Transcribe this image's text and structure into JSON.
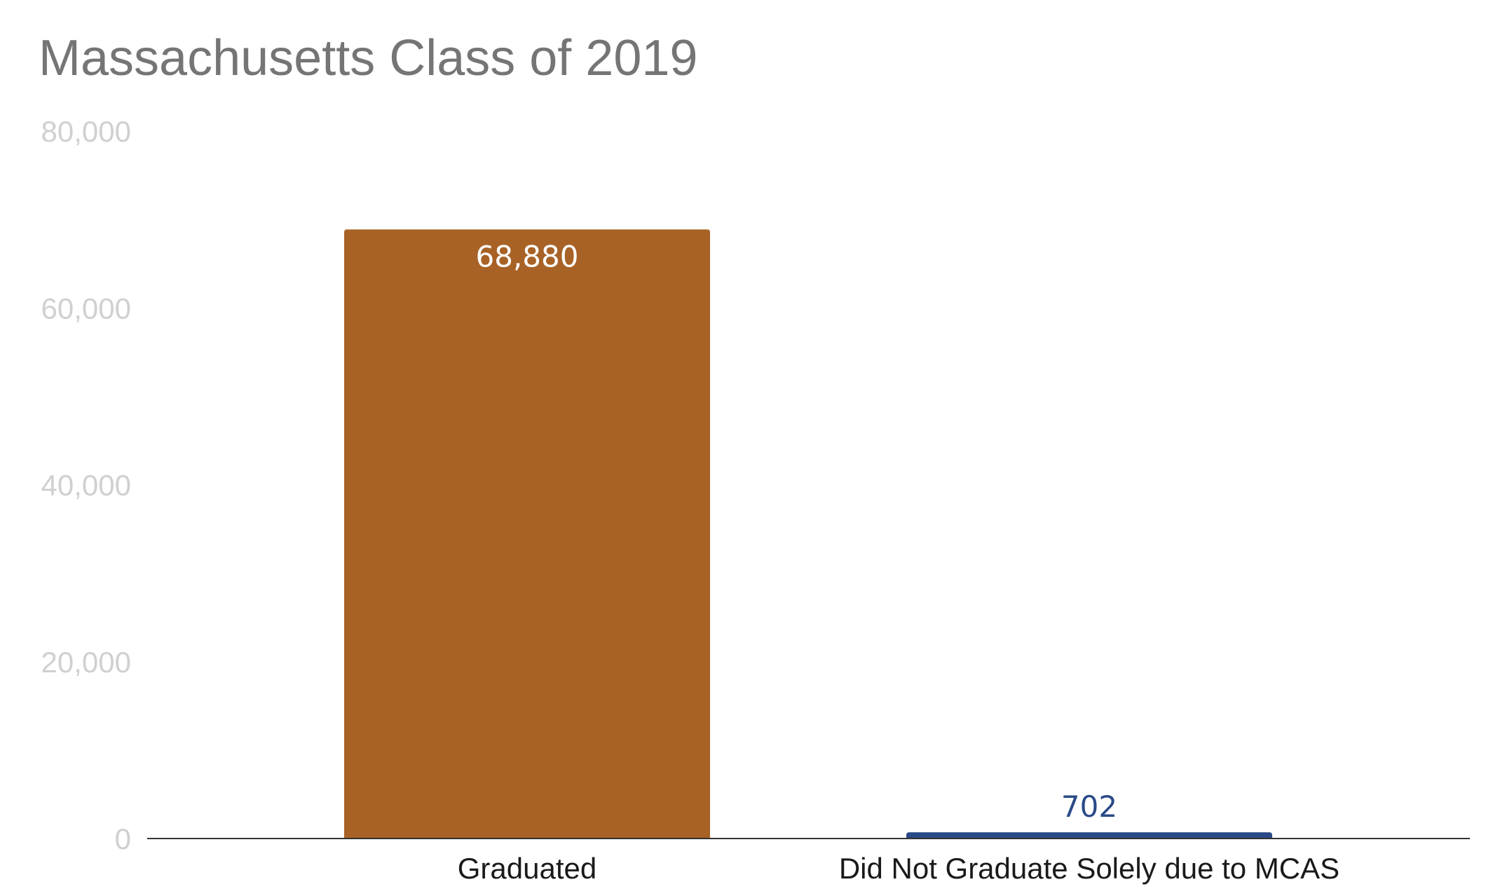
{
  "chart_data": {
    "type": "bar",
    "title": "Massachusetts Class of 2019",
    "xlabel": "",
    "ylabel": "",
    "categories": [
      "Graduated",
      "Did Not Graduate Solely due to MCAS"
    ],
    "values": [
      68880,
      702
    ],
    "data_labels": [
      "68,880",
      "702"
    ],
    "bar_colors": [
      "#a86226",
      "#2a4a87"
    ],
    "data_label_colors": [
      "#ffffff",
      "#2a4a87"
    ],
    "data_label_position": [
      "inside-top",
      "above"
    ],
    "ylim": [
      0,
      80000
    ],
    "yticks": [
      0,
      20000,
      40000,
      60000,
      80000
    ],
    "ytick_labels": [
      "0",
      "20,000",
      "40,000",
      "60,000",
      "80,000"
    ],
    "grid": false,
    "legend": "none",
    "colors": {
      "title": "#757575",
      "tick_labels": "#d0d0d0",
      "category_labels": "#1a1a1a",
      "axis_line": "#333333"
    }
  }
}
